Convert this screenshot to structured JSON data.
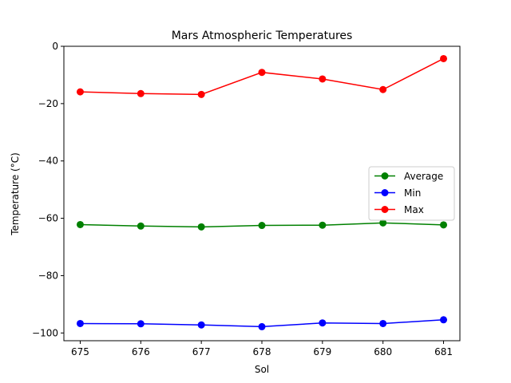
{
  "chart_data": {
    "type": "line",
    "title": "Mars Atmospheric Temperatures",
    "xlabel": "Sol",
    "ylabel": "Temperature (°C)",
    "x": [
      675,
      676,
      677,
      678,
      679,
      680,
      681
    ],
    "xlim": [
      674.73,
      681.27
    ],
    "ylim": [
      -102.7,
      0
    ],
    "xticks": [
      "675",
      "676",
      "677",
      "678",
      "679",
      "680",
      "681"
    ],
    "yticks": [
      "0",
      "−20",
      "−40",
      "−60",
      "−80",
      "−100"
    ],
    "ytick_values": [
      0,
      -20,
      -40,
      -60,
      -80,
      -100
    ],
    "grid": false,
    "legend_position": "center-right",
    "series": [
      {
        "name": "Average",
        "color": "#008000",
        "marker": "circle",
        "values": [
          -62.2,
          -62.7,
          -63.0,
          -62.5,
          -62.4,
          -61.6,
          -62.3
        ]
      },
      {
        "name": "Min",
        "color": "#0000ff",
        "marker": "circle",
        "values": [
          -96.7,
          -96.8,
          -97.2,
          -97.8,
          -96.5,
          -96.7,
          -95.4
        ]
      },
      {
        "name": "Max",
        "color": "#ff0000",
        "marker": "circle",
        "values": [
          -15.9,
          -16.5,
          -16.8,
          -9.1,
          -11.4,
          -15.1,
          -4.3
        ]
      }
    ]
  }
}
